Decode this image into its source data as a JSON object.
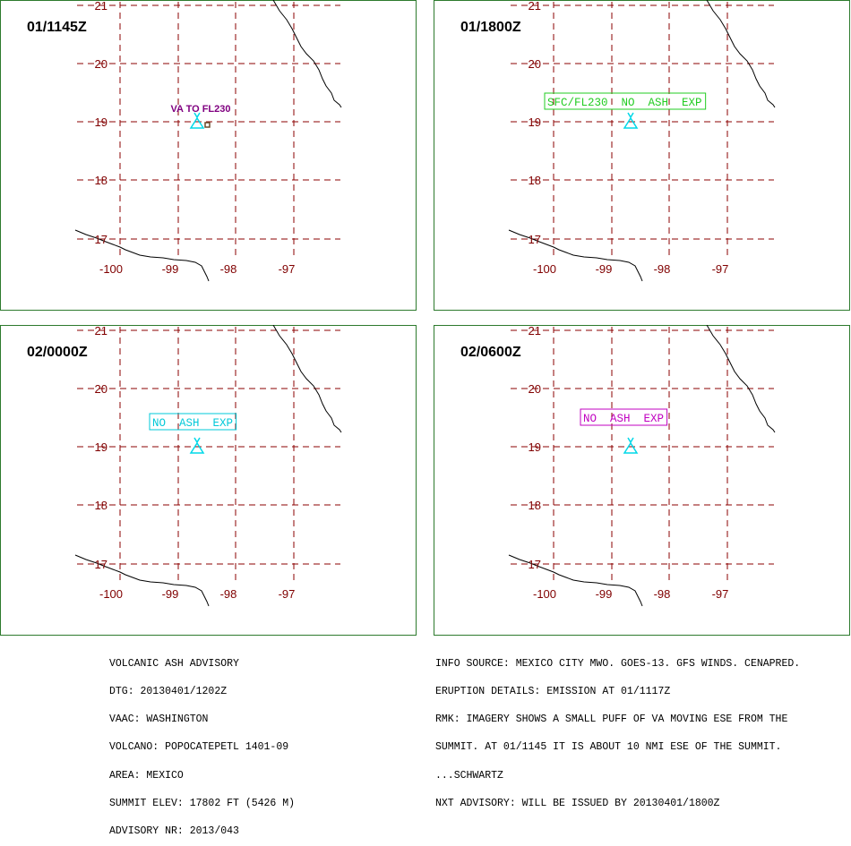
{
  "map": {
    "lat_labels": [
      "21",
      "20",
      "19",
      "18",
      "17"
    ],
    "lon_labels": [
      "-100",
      "-99",
      "-98",
      "-97"
    ],
    "colors": {
      "frame": "#2d7a2d",
      "grid": "#8b0000",
      "label": "#800000",
      "coast": "#000000",
      "volcano": "#00d8e8"
    }
  },
  "panels": [
    {
      "time": "01/1145Z",
      "annotation": "VA TO FL230",
      "annotation_style": "plain",
      "annotation_color": "#800080"
    },
    {
      "time": "01/1800Z",
      "annotation": "SFC/FL230  NO  ASH  EXP",
      "annotation_style": "boxed",
      "annotation_color": "#22cc22"
    },
    {
      "time": "02/0000Z",
      "annotation": "NO  ASH  EXP",
      "annotation_style": "boxed",
      "annotation_color": "#00c8d8"
    },
    {
      "time": "02/0600Z",
      "annotation": "NO  ASH  EXP",
      "annotation_style": "boxed",
      "annotation_color": "#c000c0"
    }
  ],
  "advisory_left": [
    "VOLCANIC ASH ADVISORY",
    "DTG: 20130401/1202Z",
    "VAAC: WASHINGTON",
    "VOLCANO: POPOCATEPETL 1401-09",
    "AREA: MEXICO",
    "SUMMIT ELEV: 17802 FT (5426 M)",
    "ADVISORY NR: 2013/043"
  ],
  "advisory_right": [
    "INFO SOURCE: MEXICO CITY MWO. GOES-13. GFS WINDS. CENAPRED.",
    "ERUPTION DETAILS: EMISSION AT 01/1117Z",
    "RMK: IMAGERY SHOWS A SMALL PUFF OF VA MOVING ESE FROM THE",
    "SUMMIT. AT 01/1145 IT IS ABOUT 10 NMI ESE OF THE SUMMIT.",
    "...SCHWARTZ",
    "NXT ADVISORY: WILL BE ISSUED BY 20130401/1800Z"
  ]
}
